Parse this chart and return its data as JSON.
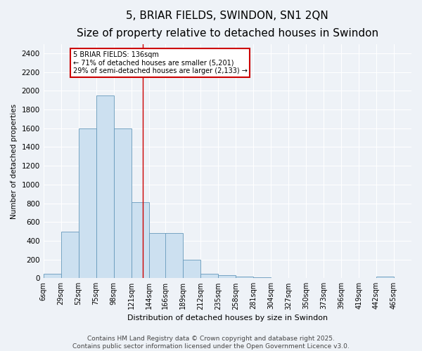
{
  "title": "5, BRIAR FIELDS, SWINDON, SN1 2QN",
  "subtitle": "Size of property relative to detached houses in Swindon",
  "xlabel": "Distribution of detached houses by size in Swindon",
  "ylabel": "Number of detached properties",
  "categories": [
    "6sqm",
    "29sqm",
    "52sqm",
    "75sqm",
    "98sqm",
    "121sqm",
    "144sqm",
    "166sqm",
    "189sqm",
    "212sqm",
    "235sqm",
    "258sqm",
    "281sqm",
    "304sqm",
    "327sqm",
    "350sqm",
    "373sqm",
    "396sqm",
    "419sqm",
    "442sqm",
    "465sqm"
  ],
  "values": [
    50,
    500,
    1600,
    1950,
    1600,
    810,
    480,
    480,
    200,
    50,
    30,
    15,
    10,
    5,
    0,
    0,
    0,
    0,
    0,
    20,
    0
  ],
  "bar_color": "#cce0f0",
  "bar_edge_color": "#6699bb",
  "bin_starts": [
    6,
    29,
    52,
    75,
    98,
    121,
    144,
    166,
    189,
    212,
    235,
    258,
    281,
    304,
    327,
    350,
    373,
    396,
    419,
    442,
    465
  ],
  "bin_width": 23,
  "ylim": [
    0,
    2500
  ],
  "yticks": [
    0,
    200,
    400,
    600,
    800,
    1000,
    1200,
    1400,
    1600,
    1800,
    2000,
    2200,
    2400
  ],
  "annotation_title": "5 BRIAR FIELDS: 136sqm",
  "annotation_line1": "← 71% of detached houses are smaller (5,201)",
  "annotation_line2": "29% of semi-detached houses are larger (2,133) →",
  "annotation_box_color": "#ffffff",
  "annotation_box_edge": "#cc0000",
  "vline_color": "#cc0000",
  "vline_x": 136,
  "footer_line1": "Contains HM Land Registry data © Crown copyright and database right 2025.",
  "footer_line2": "Contains public sector information licensed under the Open Government Licence v3.0.",
  "background_color": "#eef2f7",
  "plot_background": "#eef2f7",
  "grid_color": "#ffffff",
  "title_fontsize": 11,
  "subtitle_fontsize": 9,
  "footer_fontsize": 6.5
}
